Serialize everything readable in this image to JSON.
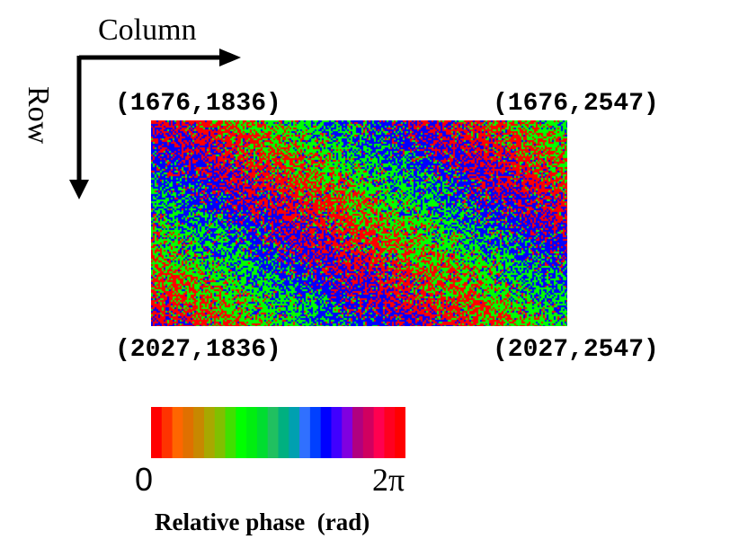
{
  "axes": {
    "column_label": "Column",
    "row_label": "Row"
  },
  "corners": {
    "top_left": "(1676,1836)",
    "top_right": "(1676,2547)",
    "bottom_left": "(2027,1836)",
    "bottom_right": "(2027,2547)"
  },
  "colorbar": {
    "min_label": "0",
    "max_label": "2π",
    "title": "Relative phase  (rad)",
    "colors": [
      "#ff0000",
      "#ff3300",
      "#ff6600",
      "#e07000",
      "#c88800",
      "#a8a800",
      "#80c000",
      "#40e000",
      "#00ff00",
      "#00ee10",
      "#00dd30",
      "#20c060",
      "#00b080",
      "#00a0b0",
      "#3070ff",
      "#0040ff",
      "#0000ff",
      "#4000ff",
      "#8000e0",
      "#b00080",
      "#d00060",
      "#ff0050",
      "#ff0020",
      "#ff0000"
    ]
  },
  "phase_map": {
    "palette": [
      "#ff0000",
      "#00ff00",
      "#0000ff"
    ]
  }
}
